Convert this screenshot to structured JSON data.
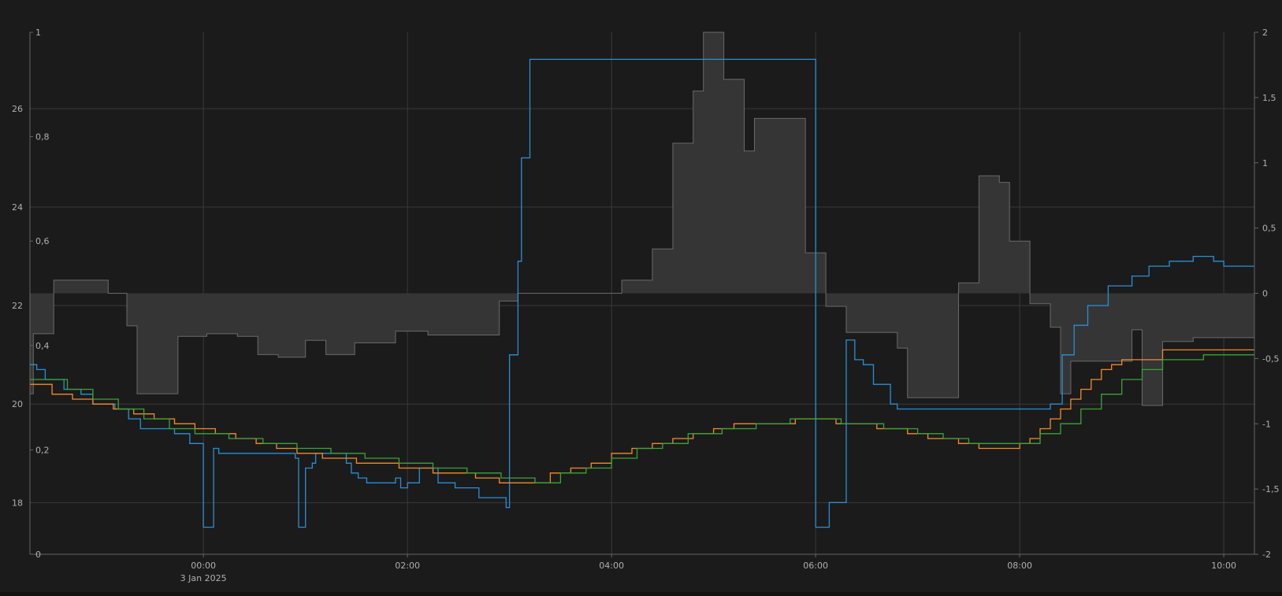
{
  "chart_data": {
    "type": "line",
    "title": "",
    "colors": {
      "background": "#1b1b1b",
      "grid": "#3a3a3a",
      "axis": "#666666",
      "tick_text": "#b0b0b0",
      "area_fill": "#353535",
      "area_stroke": "#6a6a6a",
      "blue": "#2a8fd6",
      "orange": "#f28c28",
      "green": "#3aa33a"
    },
    "x_axis": {
      "type": "time",
      "range": [
        "2025-01-02 22:18",
        "2025-01-03 10:18"
      ],
      "ticks": [
        {
          "time": "2025-01-03 00:00",
          "label": "00:00",
          "sublabel": "3 Jan 2025"
        },
        {
          "time": "2025-01-03 02:00",
          "label": "02:00",
          "sublabel": ""
        },
        {
          "time": "2025-01-03 04:00",
          "label": "04:00",
          "sublabel": ""
        },
        {
          "time": "2025-01-03 06:00",
          "label": "06:00",
          "sublabel": ""
        },
        {
          "time": "2025-01-03 08:00",
          "label": "08:00",
          "sublabel": ""
        },
        {
          "time": "2025-01-03 10:00",
          "label": "10:00",
          "sublabel": ""
        }
      ],
      "grid": true
    },
    "y_axes": [
      {
        "id": "temp",
        "position": "left-outer",
        "range": [
          16.95,
          27.55
        ],
        "ticks": [
          {
            "v": 18,
            "label": "18"
          },
          {
            "v": 20,
            "label": "20"
          },
          {
            "v": 22,
            "label": "22"
          },
          {
            "v": 24,
            "label": "24"
          },
          {
            "v": 26,
            "label": "26"
          }
        ],
        "grid": true
      },
      {
        "id": "frac",
        "position": "left-inner",
        "range": [
          0,
          1
        ],
        "ticks": [
          {
            "v": 0,
            "label": "0"
          },
          {
            "v": 0.2,
            "label": "0,2"
          },
          {
            "v": 0.4,
            "label": "0,4"
          },
          {
            "v": 0.6,
            "label": "0,6"
          },
          {
            "v": 0.8,
            "label": "0,8"
          },
          {
            "v": 1,
            "label": "1"
          }
        ],
        "grid": false
      },
      {
        "id": "delta",
        "position": "right",
        "range": [
          -2,
          2
        ],
        "ticks": [
          {
            "v": -2,
            "label": "-2"
          },
          {
            "v": -1.5,
            "label": "-1,5"
          },
          {
            "v": -1,
            "label": "-1"
          },
          {
            "v": -0.5,
            "label": "-0,5"
          },
          {
            "v": 0,
            "label": "0"
          },
          {
            "v": 0.5,
            "label": "0,5"
          },
          {
            "v": 1,
            "label": "1"
          },
          {
            "v": 1.5,
            "label": "1,5"
          },
          {
            "v": 2,
            "label": "2"
          }
        ],
        "grid": false
      }
    ],
    "series": [
      {
        "id": "grey-area",
        "type": "step-area",
        "axis": "delta",
        "baseline": 0,
        "color": "#353535",
        "points": [
          [
            "2025-01-02 22:18",
            -0.77
          ],
          [
            "2025-01-02 22:20",
            -0.31
          ],
          [
            "2025-01-02 22:32",
            0.1
          ],
          [
            "2025-01-02 23:04",
            0.0
          ],
          [
            "2025-01-02 23:15",
            -0.25
          ],
          [
            "2025-01-02 23:21",
            -0.77
          ],
          [
            "2025-01-02 23:45",
            -0.33
          ],
          [
            "2025-01-03 00:02",
            -0.31
          ],
          [
            "2025-01-03 00:20",
            -0.33
          ],
          [
            "2025-01-03 00:32",
            -0.47
          ],
          [
            "2025-01-03 00:44",
            -0.49
          ],
          [
            "2025-01-03 01:00",
            -0.36
          ],
          [
            "2025-01-03 01:12",
            -0.47
          ],
          [
            "2025-01-03 01:29",
            -0.38
          ],
          [
            "2025-01-03 01:53",
            -0.29
          ],
          [
            "2025-01-03 02:12",
            -0.32
          ],
          [
            "2025-01-03 02:54",
            -0.06
          ],
          [
            "2025-01-03 03:05",
            0.0
          ],
          [
            "2025-01-03 04:06",
            0.1
          ],
          [
            "2025-01-03 04:24",
            0.34
          ],
          [
            "2025-01-03 04:36",
            1.15
          ],
          [
            "2025-01-03 04:48",
            1.55
          ],
          [
            "2025-01-03 04:54",
            2.0
          ],
          [
            "2025-01-03 05:06",
            1.64
          ],
          [
            "2025-01-03 05:18",
            1.09
          ],
          [
            "2025-01-03 05:24",
            1.34
          ],
          [
            "2025-01-03 05:54",
            0.31
          ],
          [
            "2025-01-03 06:06",
            -0.1
          ],
          [
            "2025-01-03 06:18",
            -0.3
          ],
          [
            "2025-01-03 06:48",
            -0.42
          ],
          [
            "2025-01-03 06:54",
            -0.8
          ],
          [
            "2025-01-03 07:24",
            0.08
          ],
          [
            "2025-01-03 07:36",
            0.9
          ],
          [
            "2025-01-03 07:48",
            0.85
          ],
          [
            "2025-01-03 07:54",
            0.4
          ],
          [
            "2025-01-03 08:06",
            -0.08
          ],
          [
            "2025-01-03 08:18",
            -0.26
          ],
          [
            "2025-01-03 08:24",
            -0.77
          ],
          [
            "2025-01-03 08:30",
            -0.52
          ],
          [
            "2025-01-03 09:06",
            -0.28
          ],
          [
            "2025-01-03 09:12",
            -0.86
          ],
          [
            "2025-01-03 09:24",
            -0.37
          ],
          [
            "2025-01-03 09:42",
            -0.34
          ],
          [
            "2025-01-03 10:18",
            -0.34
          ]
        ]
      },
      {
        "id": "blue",
        "type": "step-line",
        "axis": "temp",
        "color": "#2a8fd6",
        "points": [
          [
            "2025-01-02 22:18",
            20.8
          ],
          [
            "2025-01-02 22:22",
            20.7
          ],
          [
            "2025-01-02 22:27",
            20.5
          ],
          [
            "2025-01-02 22:38",
            20.3
          ],
          [
            "2025-01-02 22:48",
            20.2
          ],
          [
            "2025-01-02 22:55",
            20.0
          ],
          [
            "2025-01-02 23:08",
            19.9
          ],
          [
            "2025-01-02 23:16",
            19.7
          ],
          [
            "2025-01-02 23:23",
            19.5
          ],
          [
            "2025-01-02 23:43",
            19.4
          ],
          [
            "2025-01-02 23:52",
            19.2
          ],
          [
            "2025-01-03 00:00",
            17.5
          ],
          [
            "2025-01-03 00:06",
            19.1
          ],
          [
            "2025-01-03 00:09",
            19.0
          ],
          [
            "2025-01-03 00:54",
            18.9
          ],
          [
            "2025-01-03 00:56",
            17.5
          ],
          [
            "2025-01-03 01:00",
            18.7
          ],
          [
            "2025-01-03 01:04",
            18.8
          ],
          [
            "2025-01-03 01:06",
            19.0
          ],
          [
            "2025-01-03 01:24",
            18.8
          ],
          [
            "2025-01-03 01:27",
            18.6
          ],
          [
            "2025-01-03 01:31",
            18.5
          ],
          [
            "2025-01-03 01:36",
            18.4
          ],
          [
            "2025-01-03 01:53",
            18.5
          ],
          [
            "2025-01-03 01:56",
            18.3
          ],
          [
            "2025-01-03 02:00",
            18.4
          ],
          [
            "2025-01-03 02:07",
            18.7
          ],
          [
            "2025-01-03 02:18",
            18.4
          ],
          [
            "2025-01-03 02:28",
            18.3
          ],
          [
            "2025-01-03 02:42",
            18.1
          ],
          [
            "2025-01-03 02:58",
            17.9
          ],
          [
            "2025-01-03 03:00",
            21.0
          ],
          [
            "2025-01-03 03:05",
            22.9
          ],
          [
            "2025-01-03 03:07",
            25.0
          ],
          [
            "2025-01-03 03:12",
            27.0
          ],
          [
            "2025-01-03 06:00",
            19.6
          ],
          [
            "2025-01-03 06:00",
            17.5
          ],
          [
            "2025-01-03 06:08",
            18.0
          ],
          [
            "2025-01-03 06:18",
            21.3
          ],
          [
            "2025-01-03 06:23",
            20.9
          ],
          [
            "2025-01-03 06:28",
            20.8
          ],
          [
            "2025-01-03 06:34",
            20.4
          ],
          [
            "2025-01-03 06:44",
            20.0
          ],
          [
            "2025-01-03 06:48",
            19.9
          ],
          [
            "2025-01-03 08:18",
            20.0
          ],
          [
            "2025-01-03 08:25",
            21.0
          ],
          [
            "2025-01-03 08:32",
            21.6
          ],
          [
            "2025-01-03 08:40",
            22.0
          ],
          [
            "2025-01-03 08:52",
            22.4
          ],
          [
            "2025-01-03 09:06",
            22.6
          ],
          [
            "2025-01-03 09:16",
            22.8
          ],
          [
            "2025-01-03 09:28",
            22.9
          ],
          [
            "2025-01-03 09:42",
            23.0
          ],
          [
            "2025-01-03 09:54",
            22.9
          ],
          [
            "2025-01-03 10:00",
            22.8
          ],
          [
            "2025-01-03 10:18",
            22.8
          ]
        ]
      },
      {
        "id": "orange",
        "type": "step-line",
        "axis": "temp",
        "color": "#f28c28",
        "points": [
          [
            "2025-01-02 22:18",
            20.4
          ],
          [
            "2025-01-02 22:31",
            20.2
          ],
          [
            "2025-01-02 22:43",
            20.1
          ],
          [
            "2025-01-02 22:55",
            20.0
          ],
          [
            "2025-01-02 23:07",
            19.9
          ],
          [
            "2025-01-02 23:19",
            19.8
          ],
          [
            "2025-01-02 23:31",
            19.7
          ],
          [
            "2025-01-02 23:43",
            19.6
          ],
          [
            "2025-01-02 23:55",
            19.5
          ],
          [
            "2025-01-03 00:07",
            19.4
          ],
          [
            "2025-01-03 00:19",
            19.3
          ],
          [
            "2025-01-03 00:31",
            19.2
          ],
          [
            "2025-01-03 00:43",
            19.1
          ],
          [
            "2025-01-03 00:55",
            19.0
          ],
          [
            "2025-01-03 01:10",
            18.9
          ],
          [
            "2025-01-03 01:30",
            18.8
          ],
          [
            "2025-01-03 01:55",
            18.7
          ],
          [
            "2025-01-03 02:15",
            18.6
          ],
          [
            "2025-01-03 02:40",
            18.5
          ],
          [
            "2025-01-03 02:54",
            18.4
          ],
          [
            "2025-01-03 03:24",
            18.6
          ],
          [
            "2025-01-03 03:36",
            18.7
          ],
          [
            "2025-01-03 03:48",
            18.8
          ],
          [
            "2025-01-03 04:00",
            19.0
          ],
          [
            "2025-01-03 04:12",
            19.1
          ],
          [
            "2025-01-03 04:24",
            19.2
          ],
          [
            "2025-01-03 04:36",
            19.3
          ],
          [
            "2025-01-03 04:48",
            19.4
          ],
          [
            "2025-01-03 05:00",
            19.5
          ],
          [
            "2025-01-03 05:12",
            19.6
          ],
          [
            "2025-01-03 05:36",
            19.6
          ],
          [
            "2025-01-03 05:48",
            19.7
          ],
          [
            "2025-01-03 06:12",
            19.6
          ],
          [
            "2025-01-03 06:36",
            19.5
          ],
          [
            "2025-01-03 06:54",
            19.4
          ],
          [
            "2025-01-03 07:06",
            19.3
          ],
          [
            "2025-01-03 07:24",
            19.2
          ],
          [
            "2025-01-03 07:36",
            19.1
          ],
          [
            "2025-01-03 08:00",
            19.2
          ],
          [
            "2025-01-03 08:06",
            19.3
          ],
          [
            "2025-01-03 08:12",
            19.5
          ],
          [
            "2025-01-03 08:18",
            19.7
          ],
          [
            "2025-01-03 08:24",
            19.9
          ],
          [
            "2025-01-03 08:30",
            20.1
          ],
          [
            "2025-01-03 08:36",
            20.3
          ],
          [
            "2025-01-03 08:42",
            20.5
          ],
          [
            "2025-01-03 08:48",
            20.7
          ],
          [
            "2025-01-03 08:54",
            20.8
          ],
          [
            "2025-01-03 09:00",
            20.9
          ],
          [
            "2025-01-03 09:24",
            21.1
          ],
          [
            "2025-01-03 10:06",
            21.1
          ],
          [
            "2025-01-03 10:18",
            21.1
          ]
        ]
      },
      {
        "id": "green",
        "type": "step-line",
        "axis": "temp",
        "color": "#3aa33a",
        "points": [
          [
            "2025-01-02 22:18",
            20.5
          ],
          [
            "2025-01-02 22:40",
            20.3
          ],
          [
            "2025-01-02 22:55",
            20.1
          ],
          [
            "2025-01-02 23:10",
            19.9
          ],
          [
            "2025-01-02 23:25",
            19.7
          ],
          [
            "2025-01-02 23:40",
            19.5
          ],
          [
            "2025-01-02 23:55",
            19.4
          ],
          [
            "2025-01-03 00:15",
            19.3
          ],
          [
            "2025-01-03 00:35",
            19.2
          ],
          [
            "2025-01-03 00:55",
            19.1
          ],
          [
            "2025-01-03 01:15",
            19.0
          ],
          [
            "2025-01-03 01:35",
            18.9
          ],
          [
            "2025-01-03 01:55",
            18.8
          ],
          [
            "2025-01-03 02:15",
            18.7
          ],
          [
            "2025-01-03 02:35",
            18.6
          ],
          [
            "2025-01-03 02:55",
            18.5
          ],
          [
            "2025-01-03 03:15",
            18.4
          ],
          [
            "2025-01-03 03:30",
            18.6
          ],
          [
            "2025-01-03 03:45",
            18.7
          ],
          [
            "2025-01-03 04:00",
            18.9
          ],
          [
            "2025-01-03 04:15",
            19.1
          ],
          [
            "2025-01-03 04:30",
            19.2
          ],
          [
            "2025-01-03 04:45",
            19.4
          ],
          [
            "2025-01-03 05:05",
            19.5
          ],
          [
            "2025-01-03 05:25",
            19.6
          ],
          [
            "2025-01-03 05:45",
            19.7
          ],
          [
            "2025-01-03 06:15",
            19.6
          ],
          [
            "2025-01-03 06:40",
            19.5
          ],
          [
            "2025-01-03 07:00",
            19.4
          ],
          [
            "2025-01-03 07:15",
            19.3
          ],
          [
            "2025-01-03 07:30",
            19.2
          ],
          [
            "2025-01-03 08:00",
            19.2
          ],
          [
            "2025-01-03 08:12",
            19.4
          ],
          [
            "2025-01-03 08:24",
            19.6
          ],
          [
            "2025-01-03 08:36",
            19.9
          ],
          [
            "2025-01-03 08:48",
            20.2
          ],
          [
            "2025-01-03 09:00",
            20.5
          ],
          [
            "2025-01-03 09:12",
            20.7
          ],
          [
            "2025-01-03 09:24",
            20.9
          ],
          [
            "2025-01-03 09:48",
            21.0
          ],
          [
            "2025-01-03 10:18",
            21.0
          ]
        ]
      }
    ]
  }
}
